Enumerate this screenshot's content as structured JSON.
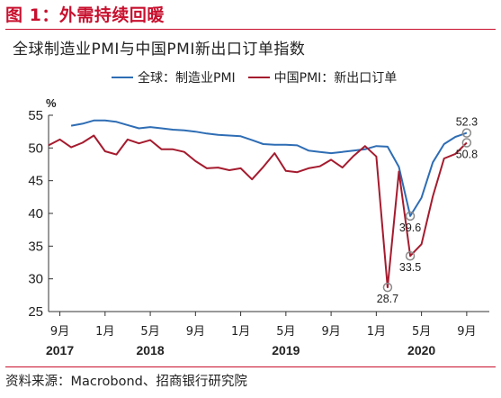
{
  "figure": {
    "title": "图 1：外需持续回暖",
    "source": "资料来源：Macrobond、招商银行研究院"
  },
  "colors": {
    "accent": "#c8102e",
    "series_blue": "#2e6db4",
    "series_red": "#a51b2e",
    "marker": "#8a8a8a"
  },
  "chart_data": {
    "type": "line",
    "title": "全球制造业PMI与中国PMI新出口订单指数",
    "ylabel": "%",
    "ylim": [
      25,
      55
    ],
    "yticks": [
      25,
      30,
      35,
      40,
      45,
      50,
      55
    ],
    "xlim": [
      "2017-08",
      "2020-11"
    ],
    "xticks": [
      {
        "date": "2017-09",
        "label": "9月"
      },
      {
        "date": "2018-01",
        "label": "1月"
      },
      {
        "date": "2018-05",
        "label": "5月"
      },
      {
        "date": "2018-09",
        "label": "9月"
      },
      {
        "date": "2019-01",
        "label": "1月"
      },
      {
        "date": "2019-05",
        "label": "5月"
      },
      {
        "date": "2019-09",
        "label": "9月"
      },
      {
        "date": "2020-01",
        "label": "1月"
      },
      {
        "date": "2020-05",
        "label": "5月"
      },
      {
        "date": "2020-09",
        "label": "9月"
      }
    ],
    "years": [
      {
        "date": "2017-09",
        "label": "2017"
      },
      {
        "date": "2018-05",
        "label": "2018"
      },
      {
        "date": "2019-05",
        "label": "2019"
      },
      {
        "date": "2020-05",
        "label": "2020"
      }
    ],
    "series": [
      {
        "name": "全球：制造业PMI",
        "color": "#2e6db4",
        "x": [
          "2017-10",
          "2017-11",
          "2017-12",
          "2018-01",
          "2018-02",
          "2018-03",
          "2018-04",
          "2018-05",
          "2018-06",
          "2018-07",
          "2018-08",
          "2018-09",
          "2018-10",
          "2018-11",
          "2018-12",
          "2019-01",
          "2019-02",
          "2019-03",
          "2019-04",
          "2019-05",
          "2019-06",
          "2019-07",
          "2019-08",
          "2019-09",
          "2019-10",
          "2019-11",
          "2019-12",
          "2020-01",
          "2020-02",
          "2020-03",
          "2020-04",
          "2020-05",
          "2020-06",
          "2020-07",
          "2020-08",
          "2020-09"
        ],
        "values": [
          53.4,
          53.7,
          54.2,
          54.2,
          54.0,
          53.5,
          53.0,
          53.2,
          53.0,
          52.8,
          52.7,
          52.5,
          52.2,
          52.0,
          51.9,
          51.8,
          51.2,
          50.6,
          50.5,
          50.5,
          50.4,
          49.6,
          49.4,
          49.2,
          49.4,
          49.6,
          49.8,
          50.3,
          50.2,
          47.1,
          39.6,
          42.4,
          47.8,
          50.6,
          51.7,
          52.3
        ]
      },
      {
        "name": "中国PMI：新出口订单",
        "color": "#a51b2e",
        "x": [
          "2017-08",
          "2017-09",
          "2017-10",
          "2017-11",
          "2017-12",
          "2018-01",
          "2018-02",
          "2018-03",
          "2018-04",
          "2018-05",
          "2018-06",
          "2018-07",
          "2018-08",
          "2018-09",
          "2018-10",
          "2018-11",
          "2018-12",
          "2019-01",
          "2019-02",
          "2019-03",
          "2019-04",
          "2019-05",
          "2019-06",
          "2019-07",
          "2019-08",
          "2019-09",
          "2019-10",
          "2019-11",
          "2019-12",
          "2020-01",
          "2020-02",
          "2020-03",
          "2020-04",
          "2020-05",
          "2020-06",
          "2020-07",
          "2020-08",
          "2020-09"
        ],
        "values": [
          50.4,
          51.3,
          50.1,
          50.8,
          51.9,
          49.5,
          49.0,
          51.3,
          50.7,
          51.2,
          49.8,
          49.8,
          49.4,
          48.0,
          46.9,
          47.0,
          46.6,
          46.9,
          45.2,
          47.1,
          49.2,
          46.5,
          46.3,
          46.9,
          47.2,
          48.2,
          47.0,
          48.8,
          50.3,
          48.7,
          28.7,
          46.4,
          33.5,
          35.3,
          42.6,
          48.4,
          49.1,
          50.8
        ]
      }
    ],
    "annotations": [
      {
        "x": "2020-02",
        "value": 28.7,
        "label": "28.7",
        "pos": "below"
      },
      {
        "x": "2020-04",
        "value": 39.6,
        "label": "39.6",
        "pos": "below"
      },
      {
        "x": "2020-04",
        "value": 33.5,
        "label": "33.5",
        "pos": "below"
      },
      {
        "x": "2020-09",
        "value": 52.3,
        "label": "52.3",
        "pos": "above"
      },
      {
        "x": "2020-09",
        "value": 50.8,
        "label": "50.8",
        "pos": "below"
      }
    ]
  }
}
